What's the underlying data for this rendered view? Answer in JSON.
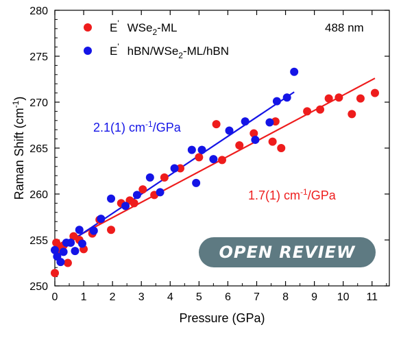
{
  "chart_data": {
    "type": "scatter",
    "xlabel": "Pressure (GPa)",
    "ylabel": "Raman Shift (cm",
    "ylabel_sup": "-1",
    "ylabel_tail": ")",
    "xlim": [
      0,
      11.6
    ],
    "ylim": [
      250,
      280
    ],
    "x_ticks": [
      0,
      1,
      2,
      3,
      4,
      5,
      6,
      7,
      8,
      9,
      10,
      11
    ],
    "y_ticks": [
      250,
      255,
      260,
      265,
      270,
      275,
      280
    ],
    "grid": false,
    "legend_position": "top-left",
    "annotation": "488 nm",
    "series": [
      {
        "name_prefix": "E",
        "name_prime": "'",
        "name_main": "WSe",
        "name_sub": "2",
        "name_tail": "-ML",
        "color": "#ee1c1c",
        "fit": {
          "x": [
            0,
            11.1
          ],
          "y": [
            254.1,
            272.6
          ]
        },
        "fit_label_main": "1.7(1) cm",
        "fit_label_sup": "-1",
        "fit_label_tail": "/GPa",
        "points": [
          [
            0,
            251.4
          ],
          [
            0.05,
            254.7
          ],
          [
            0.15,
            253.9
          ],
          [
            0.3,
            254.4
          ],
          [
            0.45,
            252.5
          ],
          [
            0.65,
            255.4
          ],
          [
            0.85,
            255.0
          ],
          [
            1.0,
            254.0
          ],
          [
            1.3,
            255.7
          ],
          [
            1.55,
            257.2
          ],
          [
            1.95,
            256.1
          ],
          [
            2.3,
            259.0
          ],
          [
            2.6,
            259.3
          ],
          [
            2.75,
            259.0
          ],
          [
            3.05,
            260.5
          ],
          [
            3.45,
            259.9
          ],
          [
            3.8,
            261.8
          ],
          [
            4.35,
            262.8
          ],
          [
            5.0,
            264.0
          ],
          [
            5.6,
            267.6
          ],
          [
            5.8,
            263.7
          ],
          [
            6.4,
            265.3
          ],
          [
            6.9,
            266.6
          ],
          [
            7.55,
            265.7
          ],
          [
            7.65,
            267.9
          ],
          [
            7.85,
            265.0
          ],
          [
            8.75,
            269.0
          ],
          [
            9.2,
            269.2
          ],
          [
            9.5,
            270.4
          ],
          [
            9.85,
            270.5
          ],
          [
            10.3,
            268.7
          ],
          [
            10.6,
            270.4
          ],
          [
            11.1,
            271.0
          ]
        ]
      },
      {
        "name_prefix": "E",
        "name_prime": "'",
        "name_main": "hBN/WSe",
        "name_sub": "2",
        "name_tail": "-ML/hBN",
        "color": "#1414e6",
        "fit": {
          "x": [
            0,
            8.3
          ],
          "y": [
            253.7,
            271.1
          ]
        },
        "fit_label_main": "2.1(1) cm",
        "fit_label_sup": "-1",
        "fit_label_tail": "/GPa",
        "points": [
          [
            0,
            253.9
          ],
          [
            0.08,
            253.2
          ],
          [
            0.2,
            252.6
          ],
          [
            0.3,
            253.7
          ],
          [
            0.4,
            254.7
          ],
          [
            0.55,
            254.7
          ],
          [
            0.7,
            253.8
          ],
          [
            0.85,
            256.1
          ],
          [
            0.95,
            254.6
          ],
          [
            1.35,
            256.0
          ],
          [
            1.6,
            257.3
          ],
          [
            1.95,
            259.5
          ],
          [
            2.45,
            258.7
          ],
          [
            2.85,
            259.9
          ],
          [
            3.3,
            261.8
          ],
          [
            3.65,
            260.2
          ],
          [
            4.15,
            262.8
          ],
          [
            4.75,
            264.8
          ],
          [
            4.9,
            261.2
          ],
          [
            5.1,
            264.8
          ],
          [
            5.5,
            263.8
          ],
          [
            6.05,
            266.9
          ],
          [
            6.6,
            267.9
          ],
          [
            6.95,
            265.9
          ],
          [
            7.45,
            267.8
          ],
          [
            7.7,
            270.1
          ],
          [
            8.05,
            270.5
          ],
          [
            8.3,
            273.3
          ]
        ]
      }
    ]
  }
}
